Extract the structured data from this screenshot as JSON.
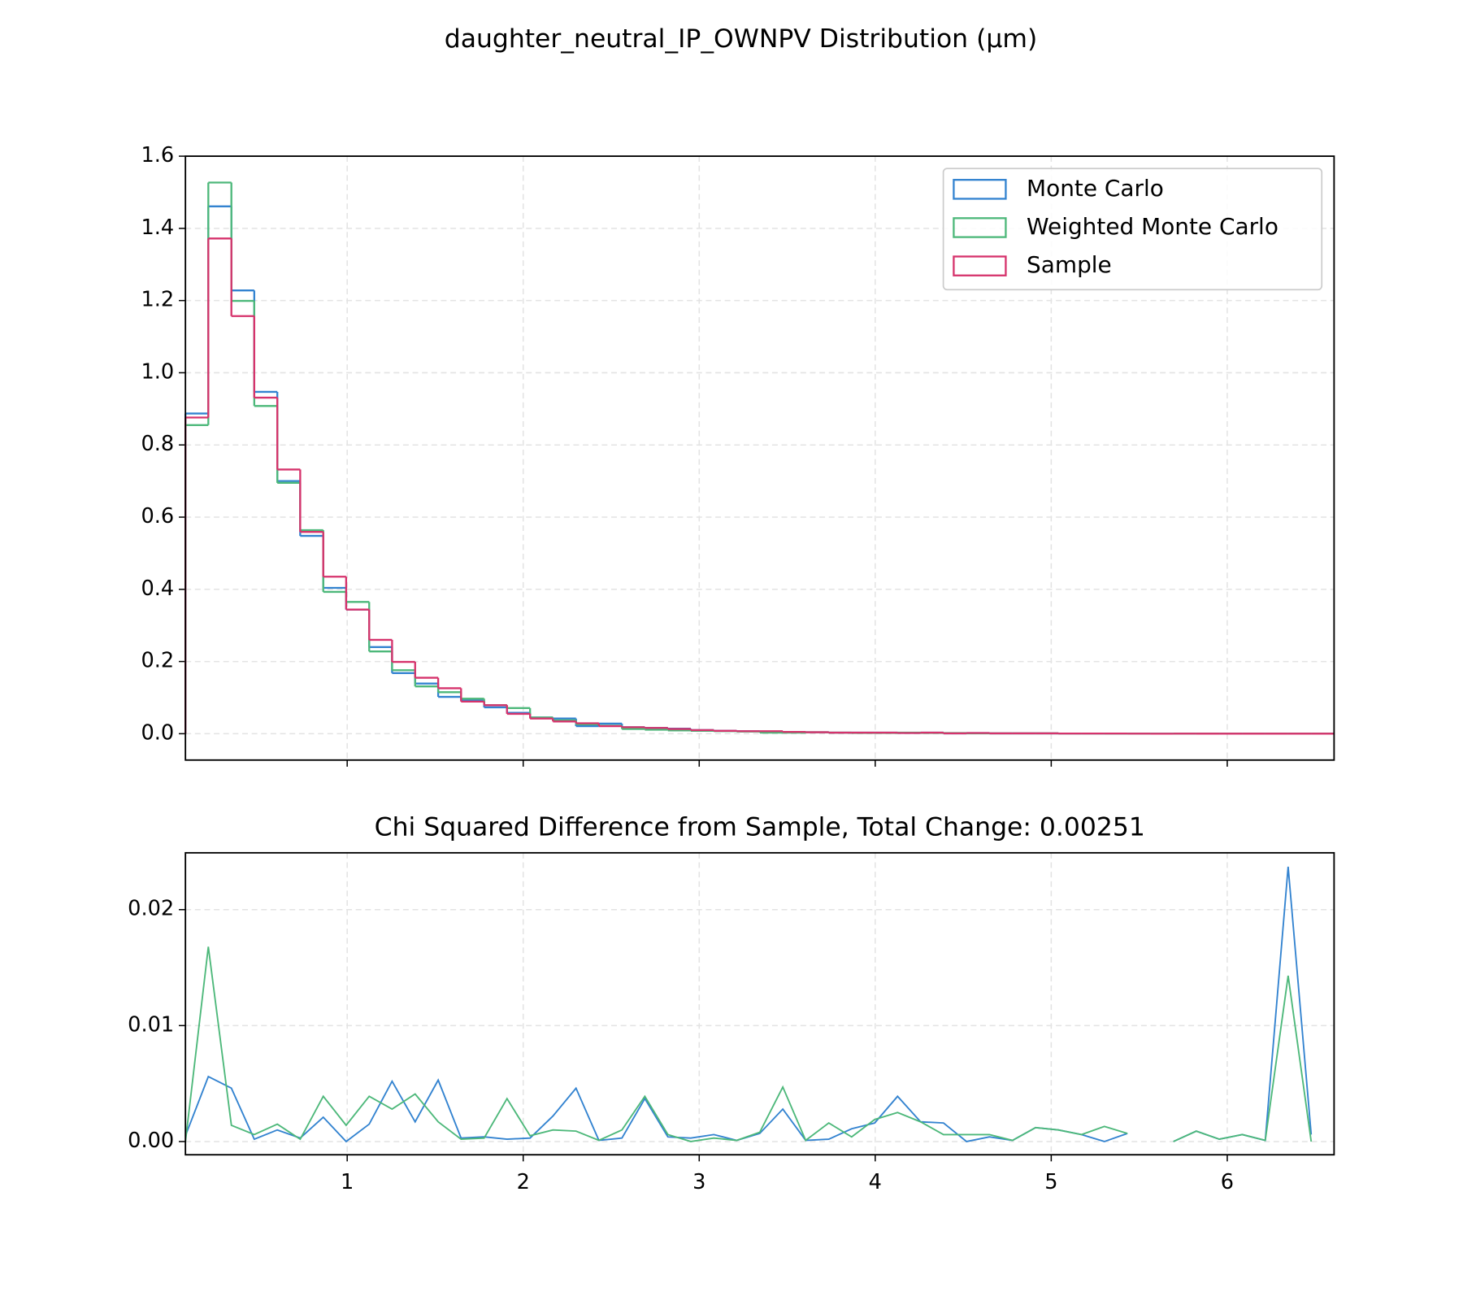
{
  "chart_data": [
    {
      "type": "histogram",
      "title": "daughter_neutral_IP_OWNPV Distribution (µm)",
      "bins": [
        0.081,
        0.211,
        0.342,
        0.472,
        0.603,
        0.733,
        0.864,
        0.994,
        1.125,
        1.255,
        1.386,
        1.517,
        1.647,
        1.778,
        1.908,
        2.039,
        2.169,
        2.3,
        2.43,
        2.561,
        2.691,
        2.822,
        2.952,
        3.083,
        3.213,
        3.344,
        3.475,
        3.605,
        3.736,
        3.866,
        3.997,
        4.127,
        4.258,
        4.388,
        4.519,
        4.649,
        4.78,
        4.911,
        5.041,
        5.172,
        5.302,
        5.433,
        5.563,
        5.694,
        5.824,
        5.955,
        6.085,
        6.216,
        6.346,
        6.477,
        6.607
      ],
      "series": [
        {
          "name": "Monte Carlo",
          "color": "#3383d0",
          "values": [
            0.887,
            1.461,
            1.228,
            0.947,
            0.7,
            0.548,
            0.404,
            0.344,
            0.24,
            0.168,
            0.139,
            0.102,
            0.092,
            0.073,
            0.058,
            0.045,
            0.042,
            0.021,
            0.028,
            0.018,
            0.016,
            0.014,
            0.01,
            0.008,
            0.007,
            0.006,
            0.004,
            0.004,
            0.003,
            0.003,
            0.003,
            0.002,
            0.003,
            0.001,
            0.002,
            0.001,
            0.001,
            0.001,
            0.0005,
            0.0005,
            0.0005,
            0.0003,
            0,
            0.0003,
            0.0002,
            0.0002,
            0.0001,
            0.0001,
            0.0001,
            0.0001
          ]
        },
        {
          "name": "Weighted Monte Carlo",
          "color": "#4db87a",
          "values": [
            0.855,
            1.527,
            1.199,
            0.908,
            0.695,
            0.564,
            0.393,
            0.365,
            0.228,
            0.176,
            0.131,
            0.115,
            0.097,
            0.079,
            0.071,
            0.045,
            0.037,
            0.026,
            0.022,
            0.013,
            0.011,
            0.009,
            0.008,
            0.007,
            0.006,
            0.003,
            0.003,
            0.004,
            0.003,
            0.002,
            0.002,
            0.003,
            0.002,
            0.002,
            0.001,
            0.001,
            0.001,
            0.001,
            0.0005,
            0.0005,
            0.0004,
            0.0003,
            0,
            0.0003,
            0.0002,
            0.0002,
            0.0001,
            0.0001,
            0.0001,
            0.0001
          ]
        },
        {
          "name": "Sample",
          "color": "#d6336c",
          "values": [
            0.876,
            1.372,
            1.157,
            0.931,
            0.732,
            0.559,
            0.435,
            0.344,
            0.26,
            0.199,
            0.155,
            0.126,
            0.089,
            0.079,
            0.055,
            0.042,
            0.034,
            0.029,
            0.021,
            0.018,
            0.016,
            0.013,
            0.01,
            0.008,
            0.007,
            0.007,
            0.005,
            0.004,
            0.003,
            0.003,
            0.003,
            0.002,
            0.003,
            0.001,
            0.002,
            0.001,
            0.001,
            0.001,
            0.0005,
            0.0005,
            0.0005,
            0.0003,
            0,
            0.0003,
            0.0002,
            0.0002,
            0.0001,
            0.0001,
            0.0001,
            0.0001
          ]
        }
      ],
      "xlim": [
        0.081,
        6.607
      ],
      "xticks": [
        1,
        2,
        3,
        4,
        5,
        6
      ],
      "ylim": [
        -0.073,
        1.6
      ],
      "yticks": [
        {
          "value": 0,
          "label": "0.0"
        },
        0.2,
        0.4,
        0.6,
        0.8,
        {
          "value": 1,
          "label": "1.0"
        },
        1.2,
        1.4,
        1.6
      ],
      "grid": true,
      "legend": "upper right"
    },
    {
      "type": "line",
      "title": "Chi Squared Difference from Sample, Total Change: 0.00251",
      "x": [
        0.081,
        0.211,
        0.342,
        0.472,
        0.603,
        0.733,
        0.864,
        0.994,
        1.125,
        1.255,
        1.386,
        1.517,
        1.647,
        1.778,
        1.908,
        2.039,
        2.169,
        2.3,
        2.43,
        2.561,
        2.691,
        2.822,
        2.952,
        3.083,
        3.213,
        3.344,
        3.475,
        3.605,
        3.736,
        3.866,
        3.997,
        4.127,
        4.258,
        4.388,
        4.519,
        4.649,
        4.78,
        4.911,
        5.041,
        5.172,
        5.302,
        5.433,
        5.563,
        5.694,
        5.824,
        5.955,
        6.085,
        6.216,
        6.346,
        6.477
      ],
      "series": [
        {
          "color": "#3383d0",
          "values": [
            0.0005,
            0.0056,
            0.0046,
            0.0002,
            0.001,
            0.0003,
            0.0021,
            0.0,
            0.0015,
            0.0052,
            0.0017,
            0.0053,
            0.0003,
            0.0004,
            0.0002,
            0.0003,
            0.0022,
            0.0046,
            0.0001,
            0.0003,
            0.0037,
            0.0004,
            0.0003,
            0.0006,
            0.0001,
            0.0007,
            0.0028,
            0.0001,
            0.0002,
            0.0011,
            0.0016,
            0.0039,
            0.0017,
            0.0016,
            0.0,
            0.0004,
            0.0001,
            0.0012,
            0.001,
            0.0006,
            0.0,
            0.0007,
            null,
            0.0,
            0.0009,
            0.0002,
            0.0006,
            0.0001,
            0.0237,
            0.0006
          ]
        },
        {
          "color": "#4db87a",
          "values": [
            0.0,
            0.0168,
            0.0014,
            0.0006,
            0.0015,
            0.0002,
            0.0039,
            0.0014,
            0.0039,
            0.0028,
            0.0041,
            0.0017,
            0.0002,
            0.0003,
            0.0037,
            0.0005,
            0.001,
            0.0009,
            0.0001,
            0.001,
            0.0039,
            0.0006,
            0.0,
            0.0003,
            0.0001,
            0.0008,
            0.0047,
            0.0001,
            0.0016,
            0.0004,
            0.0019,
            0.0025,
            0.0017,
            0.0006,
            0.0006,
            0.0006,
            0.0001,
            0.0012,
            0.001,
            0.0006,
            0.0013,
            0.0007,
            null,
            0.0,
            0.0009,
            0.0002,
            0.0006,
            0.0001,
            0.0143,
            0.0
          ]
        }
      ],
      "xlim": [
        0.081,
        6.607
      ],
      "xticks": [
        1,
        2,
        3,
        4,
        5,
        6
      ],
      "ylim": [
        -0.00114,
        0.0249
      ],
      "yticks": [
        {
          "value": 0,
          "label": "0.00"
        },
        {
          "value": 0.01,
          "label": "0.01"
        },
        {
          "value": 0.02,
          "label": "0.02"
        }
      ],
      "grid": true
    }
  ]
}
